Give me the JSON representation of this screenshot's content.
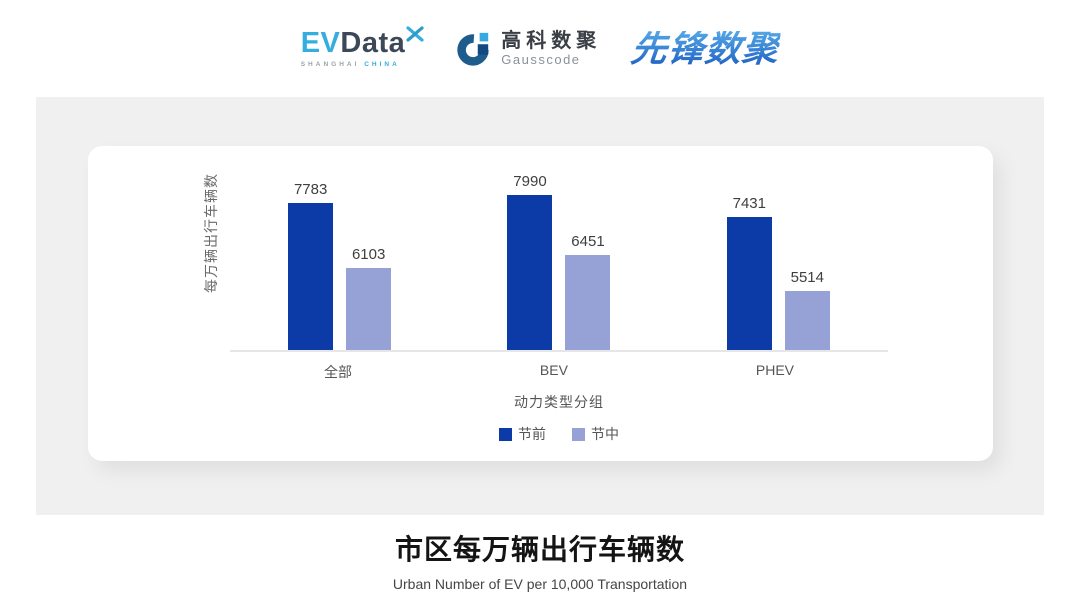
{
  "header": {
    "evdata_logo": {
      "ev": "EV",
      "data": "Data",
      "sub_left": "SHANGHAI",
      "sub_right": "CHINA",
      "color_cyan": "#35AEDF",
      "color_navy": "#3C4858"
    },
    "gausscode_logo": {
      "cn": "高科数聚",
      "en": "Gausscode",
      "icon_arc_color": "#1E5C8C",
      "icon_light_square": "#36A9E1",
      "icon_dark_square": "#12497E"
    },
    "pioneer_logo": {
      "text": "先锋数聚",
      "color": "#2F7CD6"
    }
  },
  "chart_data": {
    "type": "bar",
    "title": "市区每万辆出行车辆数",
    "subtitle": "Urban Number of EV per 10,000 Transportation",
    "ylabel": "每万辆出行车辆数",
    "xlabel": "动力类型分组",
    "categories": [
      "全部",
      "BEV",
      "PHEV"
    ],
    "series": [
      {
        "name": "节前",
        "color": "#0C3BA8",
        "values": [
          7783,
          7990,
          7431
        ]
      },
      {
        "name": "节中",
        "color": "#96A2D6",
        "values": [
          6103,
          6451,
          5514
        ]
      }
    ],
    "ylim": [
      4000,
      8300
    ],
    "grid": false,
    "legend_position": "bottom",
    "value_labels": true
  }
}
